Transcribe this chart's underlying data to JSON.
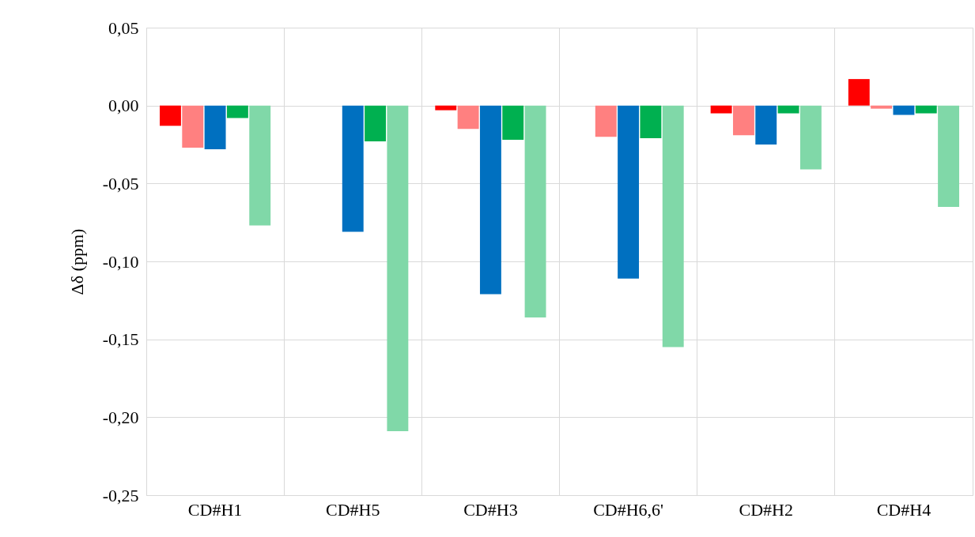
{
  "chart_data": {
    "type": "bar",
    "ylabel": "Δδ (ppm)",
    "categories": [
      "CD#H1",
      "CD#H5",
      "CD#H3",
      "CD#H6,6'",
      "CD#H2",
      "CD#H4"
    ],
    "series": [
      {
        "color": "#ff0000",
        "values": [
          -0.013,
          0,
          -0.003,
          0,
          -0.005,
          0.017
        ]
      },
      {
        "color": "#ff8080",
        "values": [
          -0.027,
          0,
          -0.015,
          -0.02,
          -0.019,
          -0.002
        ]
      },
      {
        "color": "#0070c0",
        "values": [
          -0.028,
          -0.081,
          -0.121,
          -0.111,
          -0.025,
          -0.006
        ]
      },
      {
        "color": "#00b050",
        "values": [
          -0.008,
          -0.023,
          -0.022,
          -0.021,
          -0.005,
          -0.005
        ]
      },
      {
        "color": "#80d8a8",
        "values": [
          -0.077,
          -0.209,
          -0.136,
          -0.155,
          -0.041,
          -0.065
        ]
      }
    ],
    "ylim": [
      -0.25,
      0.05
    ],
    "yticks": [
      {
        "value": 0.05,
        "label": "0,05"
      },
      {
        "value": 0,
        "label": "0,00"
      },
      {
        "value": -0.05,
        "label": "-0,05"
      },
      {
        "value": -0.1,
        "label": "-0,10"
      },
      {
        "value": -0.15,
        "label": "-0,15"
      },
      {
        "value": -0.2,
        "label": "-0,20"
      },
      {
        "value": -0.25,
        "label": "-0,25"
      }
    ],
    "grid": true
  }
}
